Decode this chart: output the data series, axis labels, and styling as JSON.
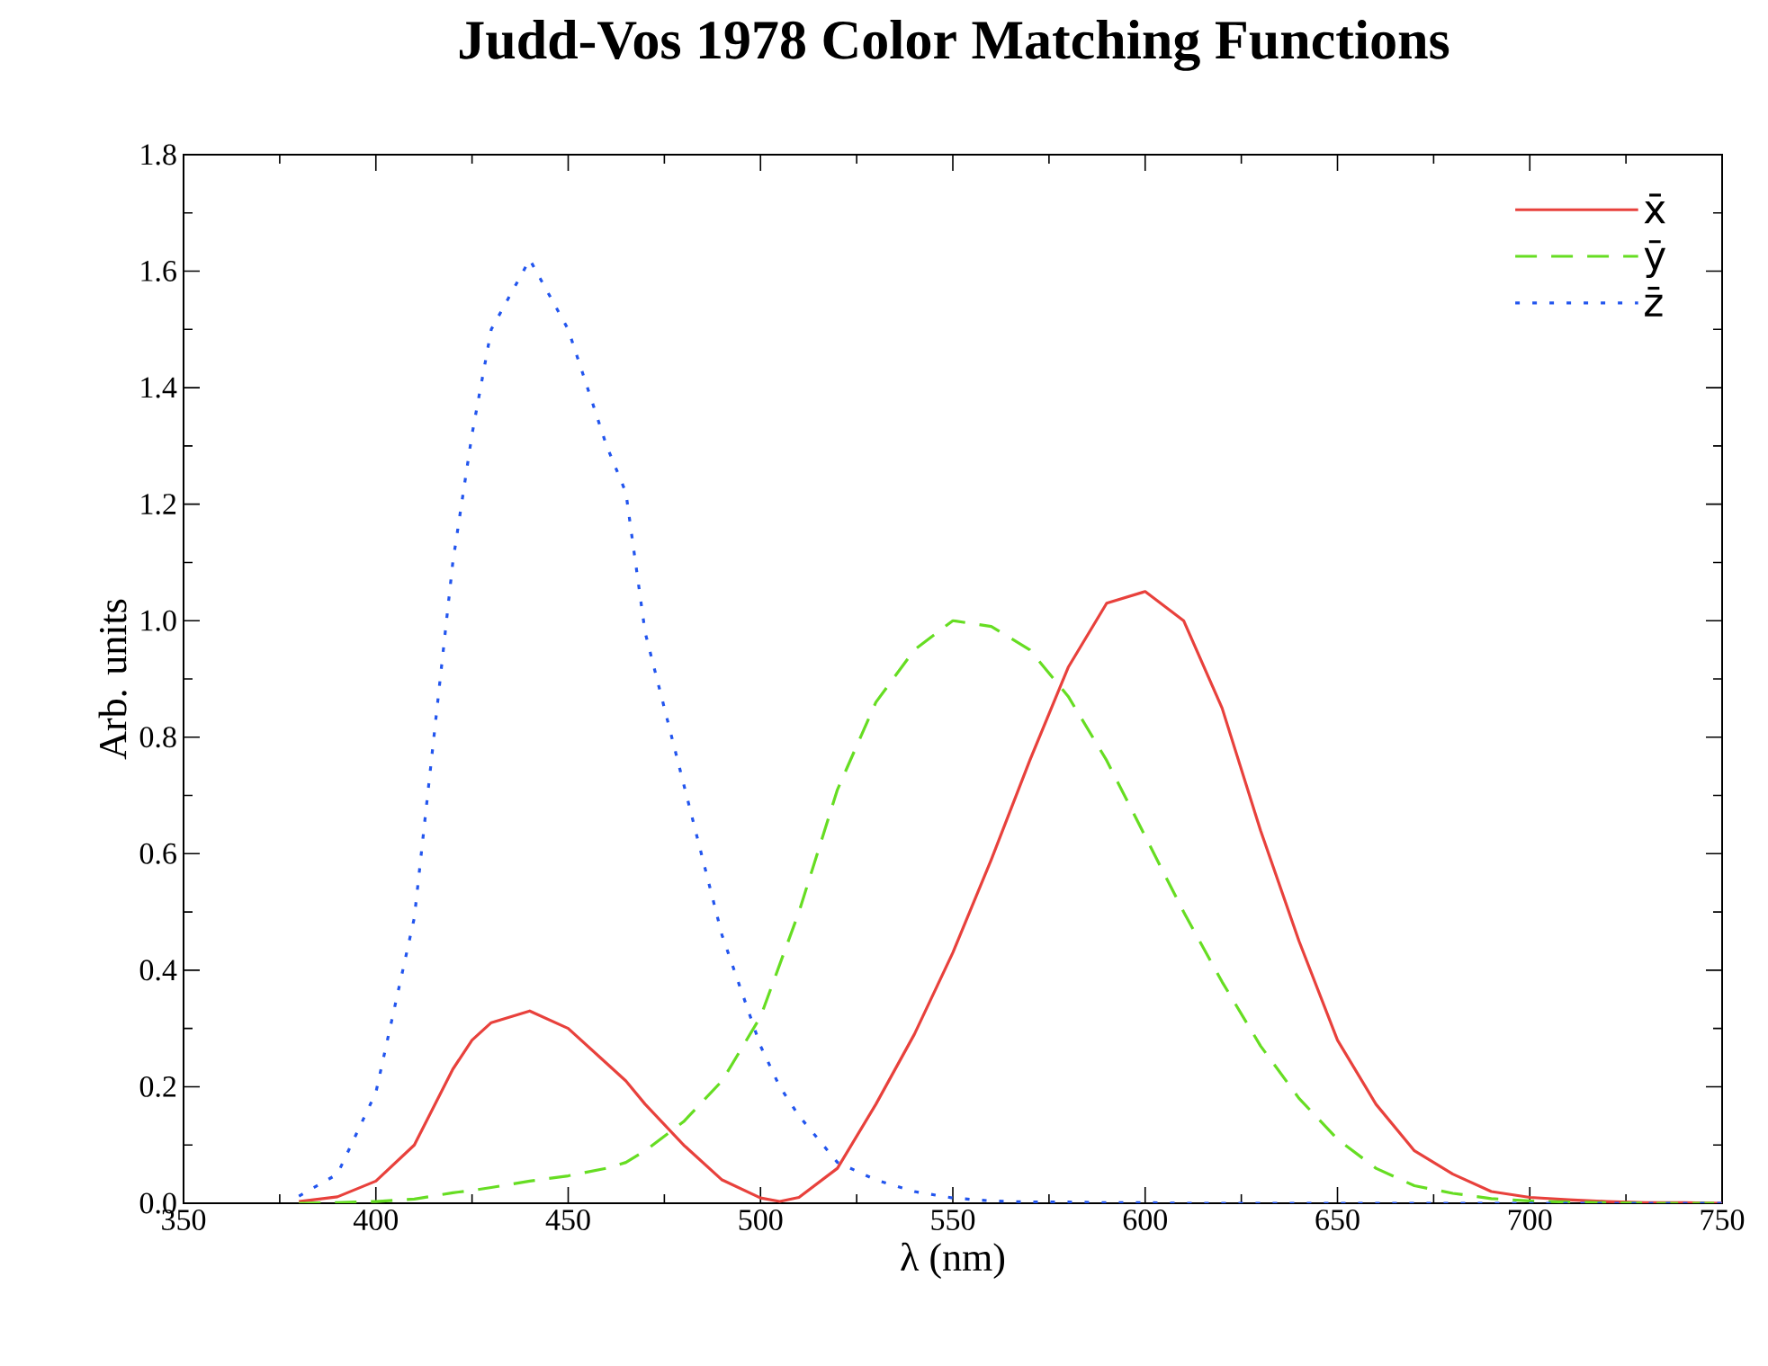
{
  "chart_data": {
    "type": "line",
    "title": "Judd-Vos 1978 Color Matching Functions",
    "xlabel": "λ (nm)",
    "ylabel": "Arb. units",
    "x": [
      380,
      390,
      400,
      410,
      420,
      425,
      430,
      440,
      450,
      460,
      465,
      470,
      480,
      490,
      500,
      505,
      510,
      520,
      530,
      540,
      550,
      560,
      570,
      580,
      590,
      600,
      610,
      620,
      630,
      640,
      650,
      660,
      670,
      680,
      690,
      700,
      710,
      720,
      730,
      740,
      750
    ],
    "series": [
      {
        "name": "x̄",
        "color": "#e8413c",
        "line_style": "solid",
        "values": [
          0.003,
          0.011,
          0.038,
          0.1,
          0.23,
          0.28,
          0.31,
          0.33,
          0.3,
          0.24,
          0.21,
          0.17,
          0.1,
          0.04,
          0.009,
          0.003,
          0.01,
          0.06,
          0.17,
          0.29,
          0.43,
          0.59,
          0.76,
          0.92,
          1.03,
          1.05,
          1.0,
          0.85,
          0.64,
          0.45,
          0.28,
          0.17,
          0.09,
          0.05,
          0.02,
          0.01,
          0.006,
          0.003,
          0.001,
          0.001,
          0.0
        ]
      },
      {
        "name": "ȳ",
        "color": "#66dd22",
        "line_style": "dashed",
        "values": [
          0.0,
          0.001,
          0.003,
          0.007,
          0.018,
          0.022,
          0.027,
          0.038,
          0.047,
          0.06,
          0.07,
          0.09,
          0.14,
          0.21,
          0.32,
          0.41,
          0.5,
          0.71,
          0.86,
          0.95,
          1.0,
          0.99,
          0.95,
          0.87,
          0.76,
          0.63,
          0.5,
          0.38,
          0.27,
          0.18,
          0.11,
          0.06,
          0.03,
          0.017,
          0.008,
          0.004,
          0.002,
          0.001,
          0.0,
          0.0,
          0.0
        ]
      },
      {
        "name": "z̄",
        "color": "#2255ee",
        "line_style": "dotted",
        "values": [
          0.012,
          0.05,
          0.19,
          0.49,
          1.1,
          1.32,
          1.5,
          1.62,
          1.5,
          1.3,
          1.22,
          0.98,
          0.72,
          0.46,
          0.27,
          0.2,
          0.15,
          0.07,
          0.04,
          0.02,
          0.009,
          0.004,
          0.002,
          0.002,
          0.001,
          0.001,
          0.0,
          0.0,
          0.0,
          0.0,
          0.0,
          0.0,
          0.0,
          0.0,
          0.0,
          0.0,
          0.0,
          0.0,
          0.0,
          0.0,
          0.0
        ]
      }
    ],
    "xlim": [
      350,
      750
    ],
    "xticks": [
      350,
      400,
      450,
      500,
      550,
      600,
      650,
      700,
      750
    ],
    "ylim": [
      0,
      1.8
    ],
    "yticks": [
      {
        "value": 0,
        "label": "0.0"
      },
      {
        "value": 0.2,
        "label": "0.2"
      },
      {
        "value": 0.4,
        "label": "0.4"
      },
      {
        "value": 0.6,
        "label": "0.6"
      },
      {
        "value": 0.8,
        "label": "0.8"
      },
      {
        "value": 1.0,
        "label": "1.0"
      },
      {
        "value": 1.2,
        "label": "1.2"
      },
      {
        "value": 1.4,
        "label": "1.4"
      },
      {
        "value": 1.6,
        "label": "1.6"
      },
      {
        "value": 1.8,
        "label": "1.8"
      }
    ],
    "grid": false,
    "legend": "top right",
    "marker": "none"
  }
}
